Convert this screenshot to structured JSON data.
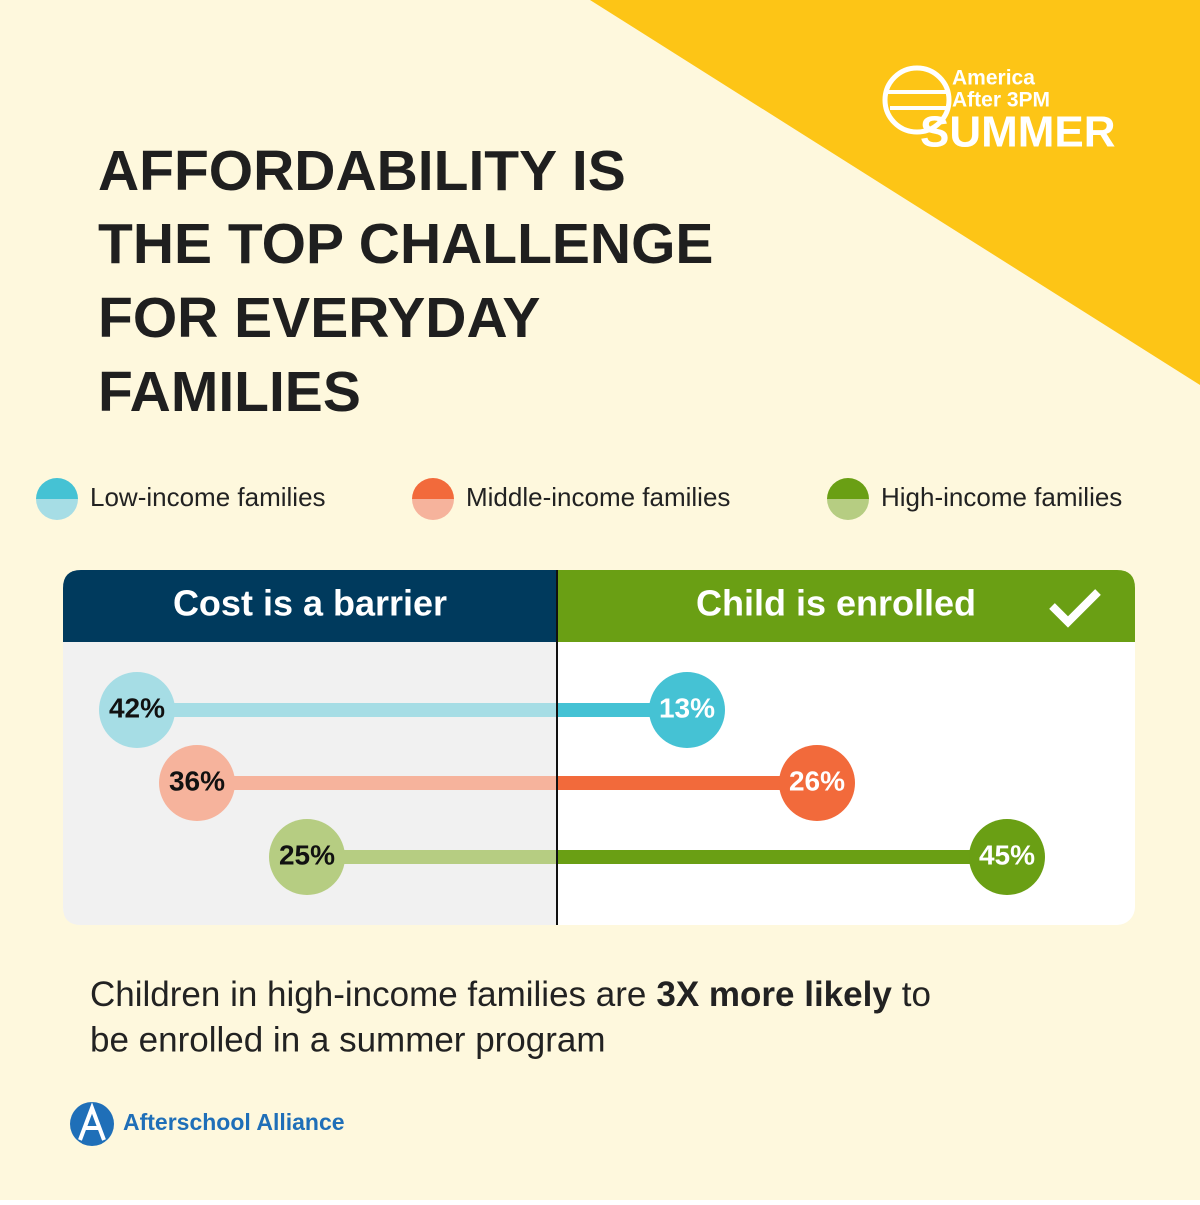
{
  "header": {
    "title": [
      "AFFORDABILITY IS",
      "THE TOP CHALLENGE",
      "FOR EVERYDAY",
      "FAMILIES"
    ],
    "logo": [
      "America",
      "After 3PM",
      "SUMMER"
    ]
  },
  "chart_data": {
    "type": "diverging-lollipop",
    "categories": [
      "Cost is a barrier",
      "Child is enrolled"
    ],
    "category_colors": [
      "#003a5d",
      "#6a9f14"
    ],
    "series": [
      {
        "name": "Low-income families",
        "colors": [
          "#a6dde5",
          "#45c2d4"
        ],
        "values": [
          42,
          13
        ],
        "value_labels": [
          "42%",
          "13%"
        ]
      },
      {
        "name": "Middle-income families",
        "colors": [
          "#f6b39c",
          "#f26a3b"
        ],
        "values": [
          36,
          26
        ],
        "value_labels": [
          "36%",
          "26%"
        ]
      },
      {
        "name": "High-income families",
        "colors": [
          "#b6cd82",
          "#6a9f14"
        ],
        "values": [
          25,
          45
        ],
        "value_labels": [
          "25%",
          "45%"
        ]
      }
    ]
  },
  "footer": {
    "line1": [
      "Children in high-income families are",
      "3X more likely",
      "to"
    ],
    "line2": "be enrolled in a summer program"
  },
  "brand": "Afterschool Alliance"
}
